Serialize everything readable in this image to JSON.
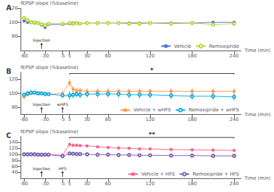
{
  "chart_data": [
    {
      "type": "line",
      "title": "A",
      "xlabel": "Time (min)",
      "ylabel": "fEPSP slope (%baseline)",
      "x": [
        -60,
        -55,
        -50,
        -45,
        -40,
        -35,
        -30,
        -25,
        -5,
        5,
        10,
        15,
        20,
        30,
        45,
        60,
        75,
        90,
        105,
        120,
        150,
        180,
        210,
        240
      ],
      "series": [
        {
          "name": "Vehicle",
          "marker": "square",
          "values": [
            102,
            100,
            100,
            99,
            99,
            96,
            93,
            97,
            97,
            98,
            99,
            99,
            98,
            99,
            99,
            99,
            99,
            99,
            99,
            99,
            99,
            99,
            100,
            100
          ],
          "errors": [
            2,
            2,
            2,
            2,
            2,
            2,
            3,
            2,
            2,
            2,
            2,
            2,
            2,
            2,
            2,
            2,
            2,
            2,
            2,
            2,
            2,
            2,
            2,
            2
          ]
        },
        {
          "name": "Remoxipride",
          "marker": "circle",
          "values": [
            106,
            103,
            100,
            100,
            99,
            97,
            96,
            98,
            98,
            99,
            98,
            99,
            98,
            99,
            99,
            99,
            99,
            98,
            98,
            99,
            98,
            99,
            97,
            98
          ],
          "errors": [
            3,
            2,
            2,
            2,
            2,
            2,
            2,
            2,
            2,
            2,
            2,
            2,
            2,
            2,
            2,
            2,
            2,
            2,
            2,
            2,
            2,
            2,
            2,
            2
          ]
        }
      ],
      "xlim": [
        -65,
        250
      ],
      "xticks": [
        -60,
        -30,
        -5,
        5,
        30,
        60,
        120,
        180,
        240
      ],
      "ylim": [
        60,
        120
      ],
      "yticks": [
        80,
        100,
        120
      ],
      "grid": false,
      "legend": "lower right",
      "annotations": [
        {
          "text": "Injection",
          "x": -35
        }
      ]
    },
    {
      "type": "line",
      "title": "B",
      "xlabel": "Time (min)",
      "ylabel": "fEPSP slope (%baseline)",
      "x": [
        -60,
        -55,
        -50,
        -45,
        -40,
        -35,
        -30,
        -25,
        -5,
        5,
        10,
        15,
        20,
        30,
        45,
        60,
        75,
        90,
        105,
        120,
        150,
        180,
        210,
        240
      ],
      "series": [
        {
          "name": "Vehicle + wHFS",
          "marker": "square",
          "values": [
            95,
            98,
            100,
            101,
            101,
            100,
            100,
            99,
            100,
            115,
            106,
            104,
            104,
            103,
            103,
            103,
            103,
            103,
            103,
            103,
            103,
            103,
            103,
            103
          ],
          "errors": [
            3,
            2,
            2,
            2,
            2,
            2,
            2,
            2,
            2,
            5,
            4,
            4,
            4,
            4,
            4,
            4,
            4,
            4,
            4,
            4,
            4,
            4,
            4,
            4
          ]
        },
        {
          "name": "Remoxipride + wHFS",
          "marker": "circle",
          "values": [
            98,
            100,
            101,
            101,
            100,
            100,
            99,
            99,
            97,
            97,
            98,
            99,
            98,
            99,
            99,
            99,
            99,
            98,
            98,
            98,
            97,
            96,
            96,
            95
          ],
          "errors": [
            3,
            3,
            3,
            2,
            2,
            2,
            2,
            2,
            3,
            6,
            5,
            5,
            5,
            5,
            5,
            5,
            5,
            5,
            5,
            5,
            5,
            5,
            5,
            5
          ]
        }
      ],
      "xlim": [
        -65,
        250
      ],
      "xticks": [
        -60,
        -30,
        -5,
        5,
        30,
        60,
        120,
        180,
        240
      ],
      "ylim": [
        70,
        130
      ],
      "yticks": [
        80,
        100,
        120
      ],
      "grid": false,
      "legend": "lower right",
      "annotations": [
        {
          "text": "Injection",
          "x": -35
        },
        {
          "text": "wHFS",
          "x": -5
        },
        {
          "text": "*",
          "x": [
            5,
            240
          ]
        }
      ]
    },
    {
      "type": "line",
      "title": "C",
      "xlabel": "Time (min)",
      "ylabel": "fEPSP slope (%baseline)",
      "x": [
        -60,
        -55,
        -50,
        -45,
        -40,
        -35,
        -30,
        -25,
        -5,
        5,
        10,
        15,
        20,
        30,
        45,
        60,
        75,
        90,
        105,
        120,
        150,
        180,
        210,
        240
      ],
      "series": [
        {
          "name": "Vehicle + HFS",
          "marker": "square",
          "values": [
            100,
            100,
            100,
            100,
            99,
            99,
            99,
            99,
            97,
            133,
            130,
            130,
            129,
            128,
            125,
            123,
            121,
            120,
            118,
            118,
            116,
            115,
            114,
            113
          ],
          "errors": [
            2,
            2,
            2,
            2,
            2,
            2,
            2,
            2,
            2,
            6,
            5,
            5,
            5,
            5,
            5,
            5,
            5,
            5,
            5,
            5,
            5,
            5,
            5,
            5
          ]
        },
        {
          "name": "Remoxipride + HFS",
          "marker": "circle",
          "values": [
            100,
            100,
            100,
            100,
            99,
            99,
            99,
            99,
            94,
            103,
            102,
            101,
            101,
            100,
            99,
            99,
            98,
            98,
            97,
            97,
            96,
            96,
            95,
            95
          ],
          "errors": [
            2,
            2,
            2,
            2,
            2,
            2,
            2,
            2,
            2,
            5,
            4,
            4,
            4,
            4,
            4,
            4,
            4,
            4,
            4,
            4,
            4,
            4,
            4,
            4
          ]
        }
      ],
      "xlim": [
        -65,
        250
      ],
      "xticks": [
        -60,
        -30,
        -5,
        5,
        30,
        60,
        120,
        180,
        240
      ],
      "ylim": [
        20,
        160
      ],
      "yticks": [
        40,
        60,
        80,
        100,
        120,
        140
      ],
      "grid": false,
      "legend": "lower right",
      "annotations": [
        {
          "text": "Injection",
          "x": -35
        },
        {
          "text": "HFS",
          "x": -5
        },
        {
          "text": "**",
          "x": [
            5,
            240
          ]
        }
      ]
    }
  ]
}
